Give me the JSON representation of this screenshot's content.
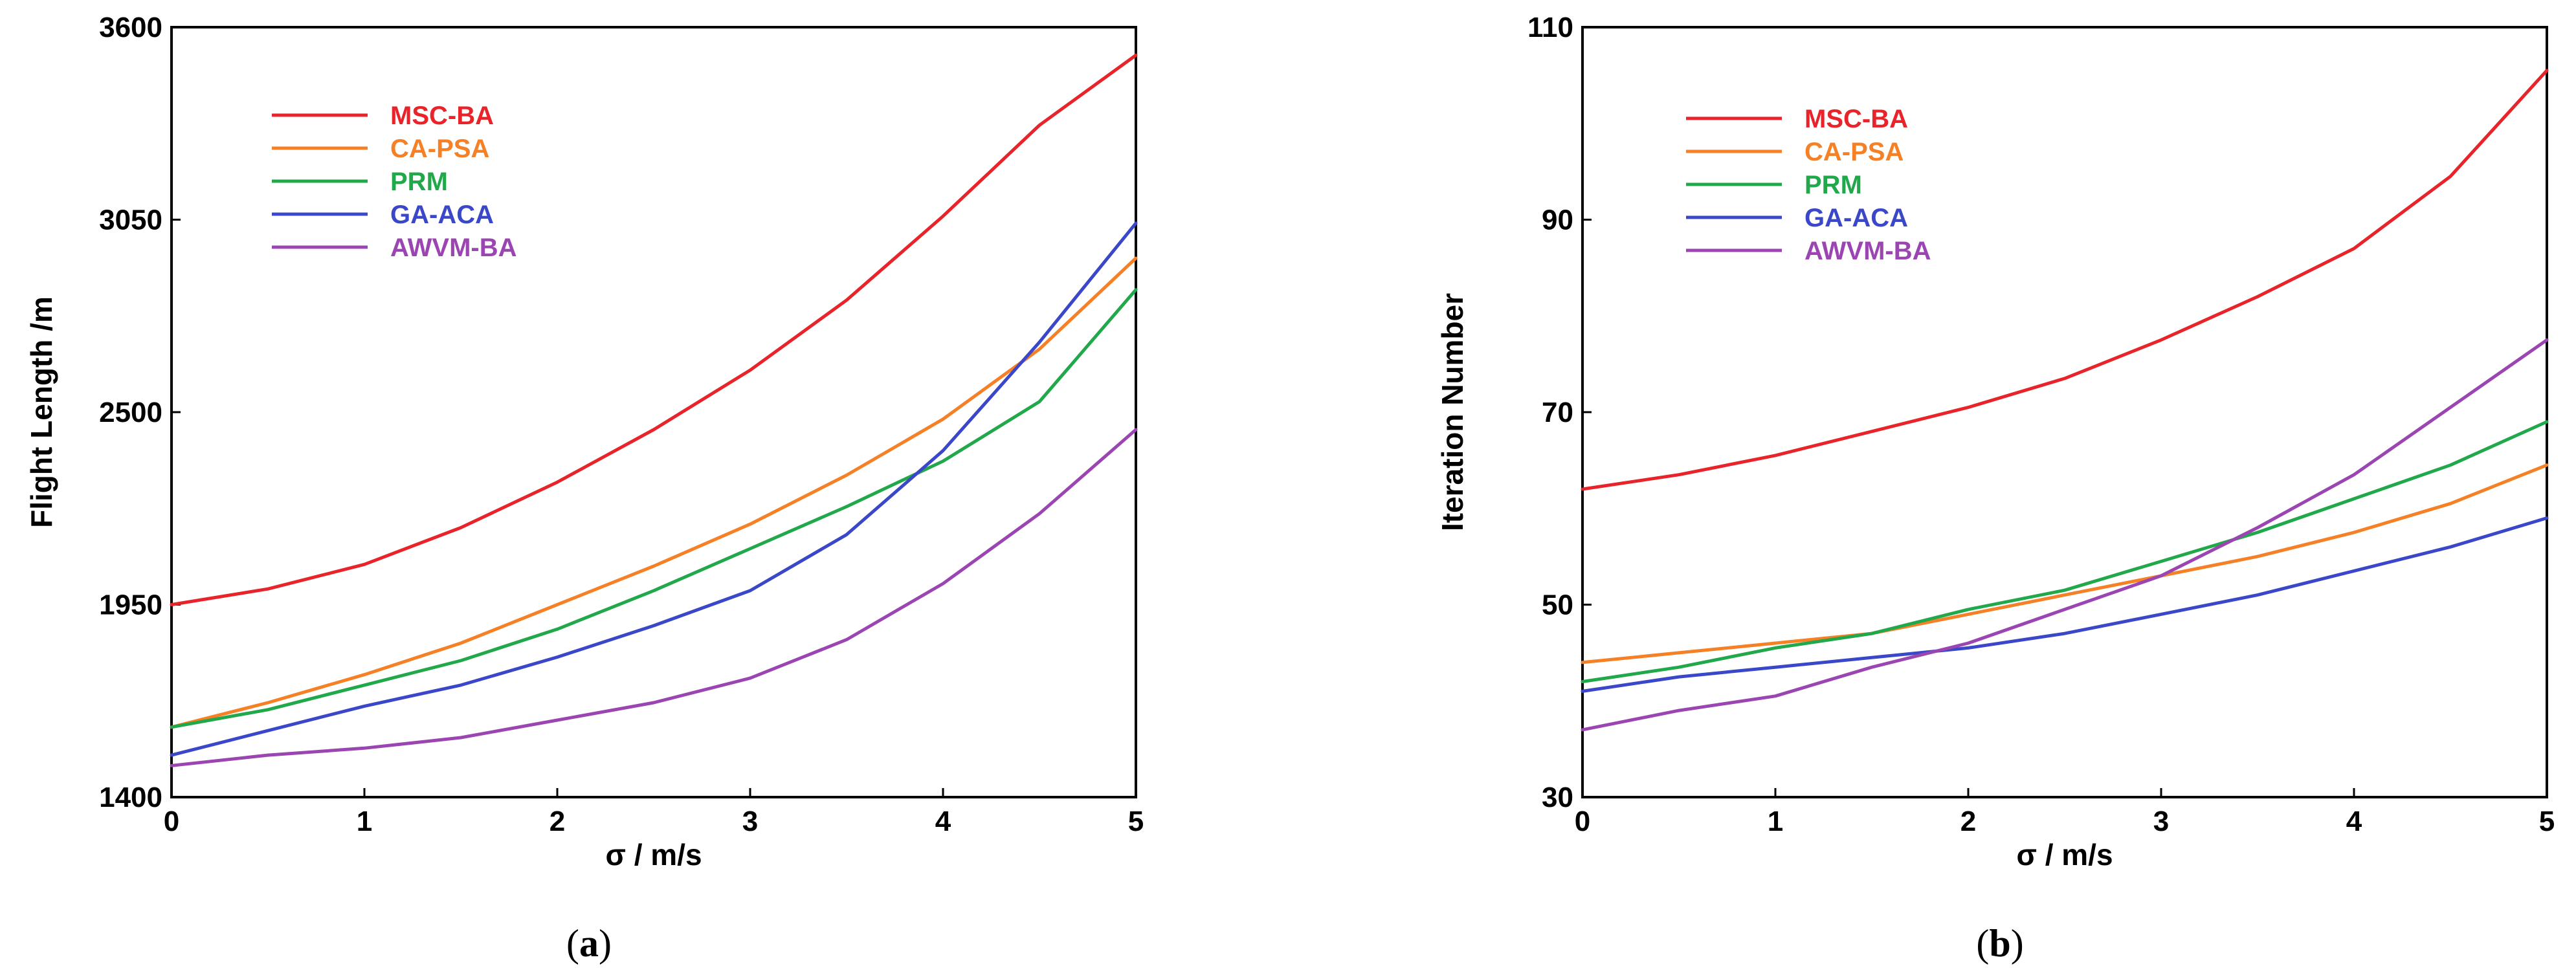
{
  "colors": {
    "MSC-BA": "#e8232a",
    "CA-PSA": "#f58025",
    "PRM": "#20a84a",
    "GA-ACA": "#3a47c8",
    "AWVM-BA": "#9b45b2"
  },
  "chart_data": [
    {
      "type": "line",
      "caption": "(a)",
      "caption_letter": "a",
      "xlabel": "σ / m/s",
      "ylabel": "Flight Length /m",
      "xlim": [
        0,
        5
      ],
      "ylim": [
        1400,
        3600
      ],
      "xticks": [
        0,
        1,
        2,
        3,
        4,
        5
      ],
      "yticks": [
        1400,
        1950,
        2500,
        3050,
        3600
      ],
      "x": [
        0,
        0.5,
        1,
        1.5,
        2,
        2.5,
        3,
        3.5,
        4,
        4.5,
        5
      ],
      "legend_position": "top-left",
      "series": [
        {
          "name": "MSC-BA",
          "values": [
            1950,
            1995,
            2065,
            2170,
            2300,
            2450,
            2620,
            2820,
            3060,
            3320,
            3520
          ]
        },
        {
          "name": "CA-PSA",
          "values": [
            1600,
            1670,
            1750,
            1840,
            1950,
            2060,
            2180,
            2320,
            2480,
            2680,
            2940
          ]
        },
        {
          "name": "PRM",
          "values": [
            1600,
            1650,
            1720,
            1790,
            1880,
            1990,
            2110,
            2230,
            2360,
            2530,
            2850
          ]
        },
        {
          "name": "GA-ACA",
          "values": [
            1520,
            1590,
            1660,
            1720,
            1800,
            1890,
            1990,
            2150,
            2390,
            2700,
            3040
          ]
        },
        {
          "name": "AWVM-BA",
          "values": [
            1490,
            1520,
            1540,
            1570,
            1620,
            1670,
            1740,
            1850,
            2010,
            2210,
            2450
          ]
        }
      ]
    },
    {
      "type": "line",
      "caption": "(b)",
      "caption_letter": "b",
      "xlabel": "σ / m/s",
      "ylabel": "Iteration Number",
      "xlim": [
        0,
        5
      ],
      "ylim": [
        30,
        110
      ],
      "xticks": [
        0,
        1,
        2,
        3,
        4,
        5
      ],
      "yticks": [
        30,
        50,
        70,
        90,
        110
      ],
      "x": [
        0,
        0.5,
        1,
        1.5,
        2,
        2.5,
        3,
        3.5,
        4,
        4.5,
        5
      ],
      "legend_position": "top-left",
      "series": [
        {
          "name": "MSC-BA",
          "values": [
            62,
            63.5,
            65.5,
            68,
            70.5,
            73.5,
            77.5,
            82,
            87,
            94.5,
            105.5
          ]
        },
        {
          "name": "CA-PSA",
          "values": [
            44,
            45,
            46,
            47,
            49,
            51,
            53,
            55,
            57.5,
            60.5,
            64.5
          ]
        },
        {
          "name": "PRM",
          "values": [
            42,
            43.5,
            45.5,
            47,
            49.5,
            51.5,
            54.5,
            57.5,
            61,
            64.5,
            69
          ]
        },
        {
          "name": "GA-ACA",
          "values": [
            41,
            42.5,
            43.5,
            44.5,
            45.5,
            47,
            49,
            51,
            53.5,
            56,
            59
          ]
        },
        {
          "name": "AWVM-BA",
          "values": [
            37,
            39,
            40.5,
            43.5,
            46,
            49.5,
            53,
            58,
            63.5,
            70.5,
            77.5
          ]
        }
      ]
    }
  ]
}
